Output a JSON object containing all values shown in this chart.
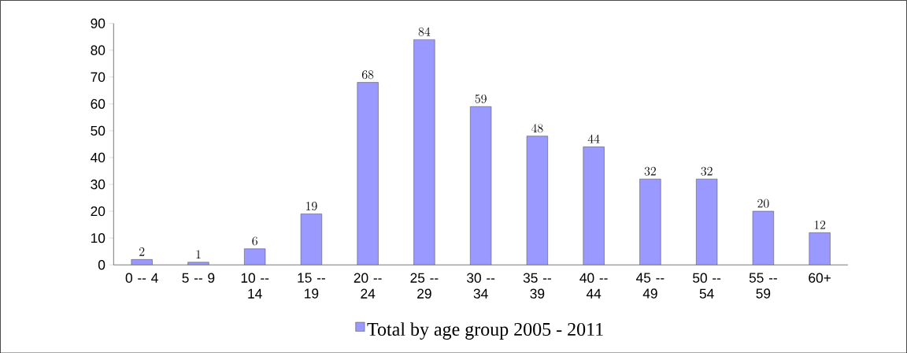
{
  "chart_data": {
    "type": "bar",
    "categories": [
      "0 -- 4",
      "5 -- 9",
      "10 -- 14",
      "15 -- 19",
      "20 -- 24",
      "25 -- 29",
      "30 -- 34",
      "35 -- 39",
      "40 -- 44",
      "45 -- 49",
      "50 -- 54",
      "55 -- 59",
      "60+"
    ],
    "series": [
      {
        "name": "Total by age group 2005 - 2011",
        "color": "#9999ff",
        "values": [
          2,
          1,
          6,
          19,
          68,
          84,
          59,
          48,
          44,
          32,
          32,
          20,
          12
        ]
      }
    ],
    "ylim": [
      0,
      90
    ],
    "yticks": [
      0,
      10,
      20,
      30,
      40,
      50,
      60,
      70,
      80,
      90
    ],
    "data_labels": true,
    "legend": "bottom",
    "grid": false
  }
}
